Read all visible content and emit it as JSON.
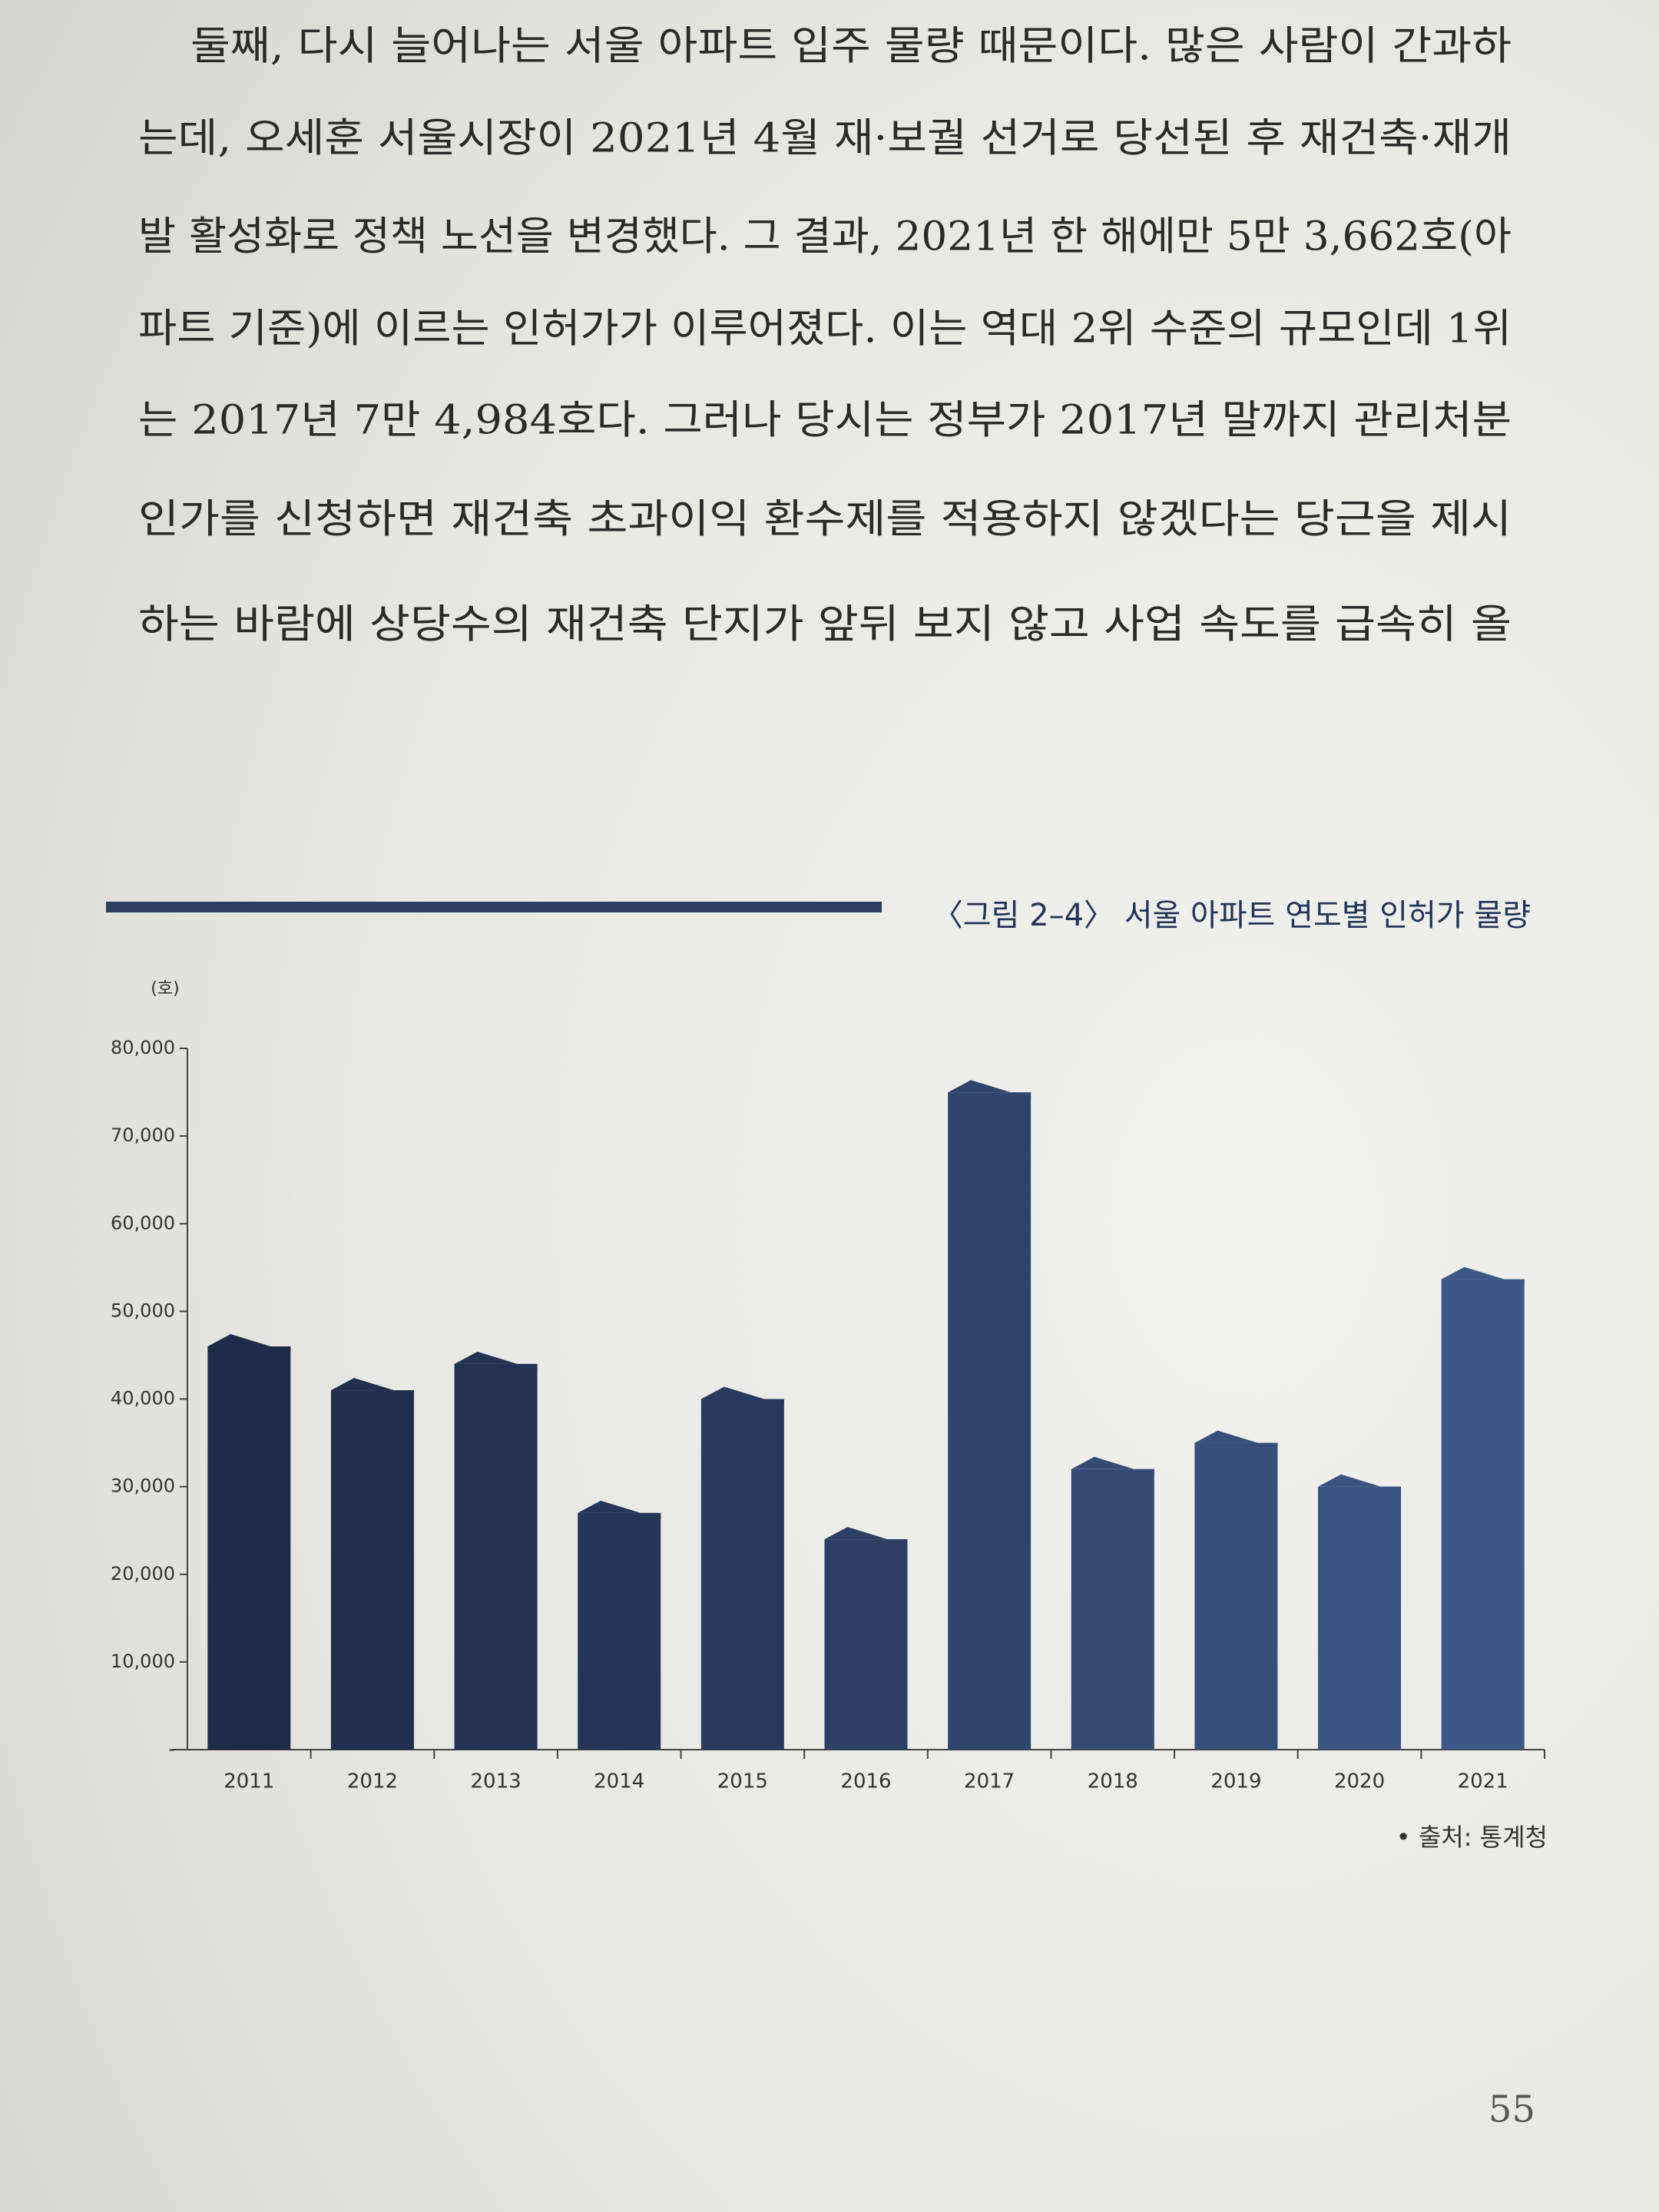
{
  "text": {
    "lines": [
      "둘째, 다시 늘어나는 서울 아파트 입주 물량 때문이다. 많은 사람이 간과하",
      "는데, 오세훈 서울시장이 2021년 4월 재·보궐 선거로 당선된 후 재건축·재개",
      "발 활성화로 정책 노선을 변경했다. 그 결과, 2021년 한 해에만 5만 3,662호(아",
      "파트 기준)에 이르는 인허가가 이루어졌다. 이는 역대 2위 수준의 규모인데 1위",
      "는 2017년 7만 4,984호다. 그러나 당시는 정부가 2017년 말까지 관리처분",
      "인가를 신청하면 재건축 초과이익 환수제를 적용하지 않겠다는 당근을 제시",
      "하는 바람에 상당수의 재건축 단지가 앞뒤 보지 않고 사업 속도를 급속히 올"
    ]
  },
  "chart_data": {
    "type": "bar",
    "title": "〈그림 2–4〉 서울 아파트 연도별 인허가 물량",
    "y_label": "(호)",
    "categories": [
      "2011",
      "2012",
      "2013",
      "2014",
      "2015",
      "2016",
      "2017",
      "2018",
      "2019",
      "2020",
      "2021"
    ],
    "values": [
      46000,
      41000,
      44000,
      27000,
      40000,
      24000,
      74984,
      32000,
      35000,
      30000,
      53662
    ],
    "colors": [
      "#1e2b48",
      "#212f4e",
      "#233253",
      "#263658",
      "#2a3a5e",
      "#2d3f65",
      "#30456d",
      "#344a74",
      "#374f7a",
      "#3a5380",
      "#3d5786"
    ],
    "ylim": [
      0,
      80000
    ],
    "yticks": [
      {
        "value": 0,
        "label": "-"
      },
      {
        "value": 10000,
        "label": "10,000"
      },
      {
        "value": 20000,
        "label": "20,000"
      },
      {
        "value": 30000,
        "label": "30,000"
      },
      {
        "value": 40000,
        "label": "40,000"
      },
      {
        "value": 50000,
        "label": "50,000"
      },
      {
        "value": 60000,
        "label": "60,000"
      },
      {
        "value": 70000,
        "label": "70,000"
      },
      {
        "value": 80000,
        "label": "80,000"
      }
    ],
    "source": "• 출처: 통계청"
  },
  "page_number": "55"
}
